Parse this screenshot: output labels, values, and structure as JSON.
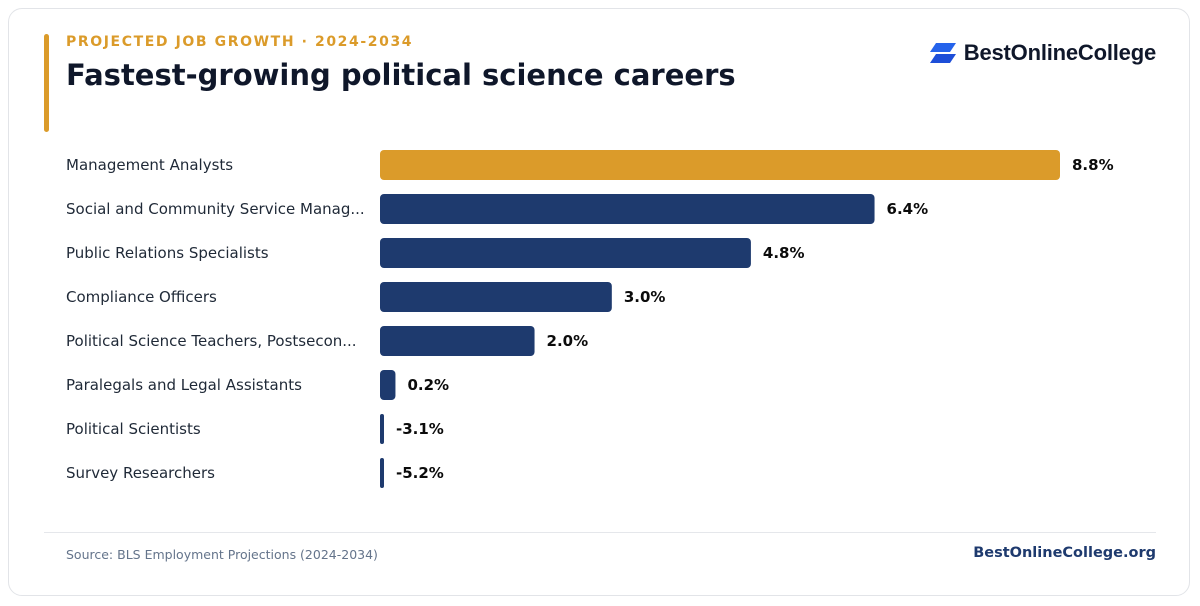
{
  "header": {
    "eyebrow": "PROJECTED JOB GROWTH · 2024-2034",
    "title": "Fastest-growing political science careers"
  },
  "brand": {
    "name": "BestOnlineCollege",
    "icon": "logo-parallelogram-icon"
  },
  "colors": {
    "highlight": "#db9b2a",
    "bar": "#1e3a6e",
    "label": "#1f2937",
    "value": "#0b0b0b"
  },
  "chart_data": {
    "type": "bar",
    "orientation": "horizontal",
    "categories": [
      "Management Analysts",
      "Social and Community Service Manag...",
      "Public Relations Specialists",
      "Compliance Officers",
      "Political Science Teachers, Postsecon...",
      "Paralegals and Legal Assistants",
      "Political Scientists",
      "Survey Researchers"
    ],
    "values": [
      8.8,
      6.4,
      4.8,
      3.0,
      2.0,
      0.2,
      -3.1,
      -5.2
    ],
    "value_labels": [
      "8.8%",
      "6.4%",
      "4.8%",
      "3.0%",
      "2.0%",
      "0.2%",
      "-3.1%",
      "-5.2%"
    ],
    "highlight_index": 0,
    "xlim": [
      0,
      8.8
    ],
    "grid": false,
    "legend": "none"
  },
  "footer": {
    "source": "Source: BLS Employment Projections (2024-2034)",
    "site": "BestOnlineCollege.org"
  }
}
